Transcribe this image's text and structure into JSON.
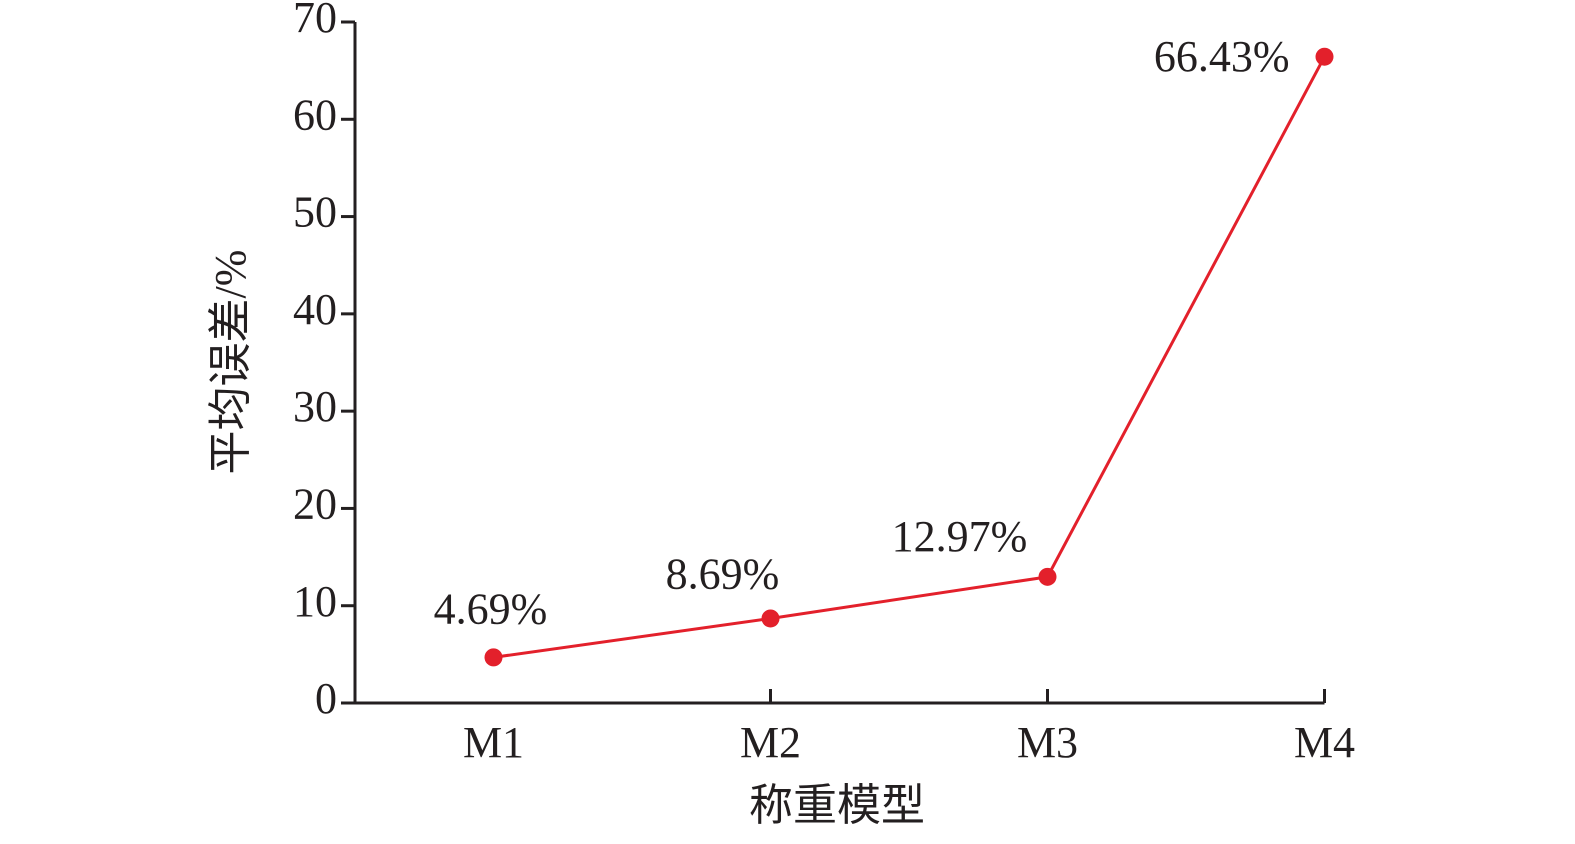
{
  "chart_data": {
    "type": "line",
    "x_label": "称重模型",
    "y_label": "平均误差/%",
    "categories": [
      "M1",
      "M2",
      "M3",
      "M4"
    ],
    "values": [
      4.69,
      8.69,
      12.97,
      66.43
    ],
    "value_labels": [
      "4.69%",
      "8.69%",
      "12.97%",
      "66.43%"
    ],
    "color": "#e3202b",
    "ylim": [
      0,
      70
    ],
    "yticks": [
      0,
      10,
      20,
      30,
      40,
      50,
      60,
      70
    ],
    "grid": false
  }
}
